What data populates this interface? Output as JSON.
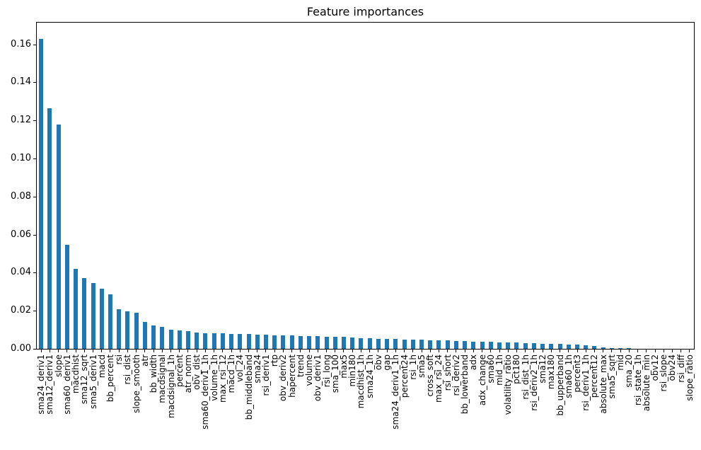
{
  "colors": {
    "bar": "#1f77b4",
    "axis": "#000000",
    "background": "#ffffff"
  },
  "chart_data": {
    "type": "bar",
    "title": "Feature importances",
    "xlabel": "",
    "ylabel": "",
    "ylim": [
      0,
      0.1714
    ],
    "y_ticks": [
      0.0,
      0.02,
      0.04,
      0.06,
      0.08,
      0.1,
      0.12,
      0.14,
      0.16
    ],
    "grid": false,
    "legend": false,
    "bar_color": "#1f77b4",
    "categories": [
      "sma24_deriv1",
      "sma12_deriv1",
      "slope",
      "sma60_deriv1",
      "macdhist",
      "sma12_sqrt",
      "sma5_deriv1",
      "macd",
      "bb_percent",
      "rsi",
      "rsi_dist",
      "slope_smooth",
      "atr",
      "bb_width",
      "macdsignal",
      "macdsignal_1h",
      "percent",
      "atr_norm",
      "obv_dist",
      "sma60_deriv1_1h",
      "volume_1h",
      "max_rsi_12",
      "macd_1h",
      "vol_24",
      "bb_middleband",
      "sma24",
      "rsi_deriv1",
      "rtp",
      "obv_deriv2",
      "hapercent",
      "trend",
      "volume",
      "obv_deriv1",
      "rsi_long",
      "sma_100",
      "max5",
      "min180",
      "macdhist_1h",
      "sma24_1h",
      "obv",
      "gap",
      "sma24_deriv1_1h",
      "percent24",
      "rsi_1h",
      "sma5",
      "cross_soft",
      "max_rsi_24",
      "rsi_short",
      "rsi_deriv2",
      "bb_lowerband",
      "adx",
      "adx_change",
      "sma60",
      "mid_1h",
      "volatility_ratio",
      "pct180",
      "rsi_dist_1h",
      "rsi_deriv2_1h",
      "sma12",
      "max180",
      "bb_upperband",
      "sma60_1h",
      "percent3",
      "rsi_deriv1_1h",
      "percent12",
      "absolute_max",
      "sma5_sqrt",
      "mid",
      "sma_20",
      "rsi_state_1h",
      "absolute_min",
      "obv12",
      "rsi_slope",
      "obv24",
      "rsi_diff",
      "slope_ratio"
    ],
    "values": [
      0.163,
      0.1265,
      0.118,
      0.0545,
      0.042,
      0.037,
      0.0345,
      0.0315,
      0.0287,
      0.0207,
      0.0197,
      0.019,
      0.014,
      0.0124,
      0.0114,
      0.0102,
      0.0098,
      0.0094,
      0.0086,
      0.0083,
      0.0082,
      0.0081,
      0.0079,
      0.0078,
      0.0077,
      0.0076,
      0.0074,
      0.0071,
      0.007,
      0.0069,
      0.0068,
      0.0067,
      0.0066,
      0.0065,
      0.0064,
      0.0062,
      0.006,
      0.0057,
      0.0054,
      0.0053,
      0.0052,
      0.0051,
      0.005,
      0.0049,
      0.0048,
      0.0045,
      0.0044,
      0.0043,
      0.0041,
      0.004,
      0.0039,
      0.0037,
      0.0036,
      0.0035,
      0.0034,
      0.0033,
      0.0031,
      0.0029,
      0.0027,
      0.0026,
      0.0025,
      0.0024,
      0.0023,
      0.0017,
      0.0016,
      0.0008,
      0.0003,
      0.0002,
      0.0002,
      0.0001,
      0.0001,
      0.0001,
      0.0001,
      0.0,
      0.0,
      0.0
    ]
  }
}
